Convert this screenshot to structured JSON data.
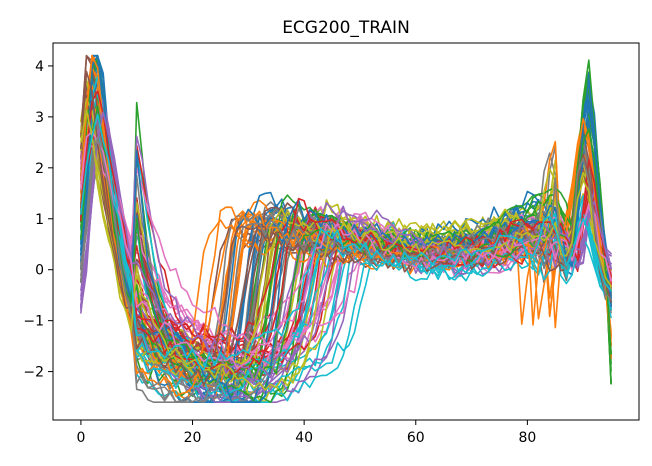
{
  "chart_data": {
    "type": "line",
    "title": "ECG200_TRAIN",
    "xlabel": "",
    "ylabel": "",
    "xlim": [
      -5,
      100
    ],
    "ylim": [
      -2.95,
      4.45
    ],
    "x_ticks": [
      0,
      20,
      40,
      60,
      80
    ],
    "y_ticks": [
      -2,
      -1,
      0,
      1,
      2,
      3,
      4
    ],
    "grid": false,
    "legend": false,
    "n_series": 100,
    "series_length": 96,
    "palette": [
      "#1f77b4",
      "#ff7f0e",
      "#2ca02c",
      "#d62728",
      "#9467bd",
      "#8c564b",
      "#e377c2",
      "#7f7f7f",
      "#bcbd22",
      "#17becf"
    ],
    "series": [
      {
        "values": [
          0.3,
          1.4,
          3.6,
          4.15,
          3.1,
          2.0,
          1.0,
          0.2,
          -0.3,
          -0.6,
          -0.9,
          -1.1,
          -1.2,
          -1.3,
          -1.4,
          -1.5,
          -1.6,
          -1.7,
          -1.8,
          -1.9,
          -2.0,
          -2.1,
          -2.2,
          -2.3,
          -2.4,
          -2.5,
          -2.55,
          -2.5,
          -2.2,
          -1.6,
          -0.8,
          0.1,
          0.7,
          1.0,
          1.05,
          1.0,
          0.95,
          0.9,
          0.85,
          0.8,
          0.75,
          0.7,
          0.7,
          0.65,
          0.65,
          0.6,
          0.6,
          0.6,
          0.55,
          0.55,
          0.55,
          0.5,
          0.5,
          0.5,
          0.5,
          0.5,
          0.45,
          0.45,
          0.45,
          0.45,
          0.45,
          0.45,
          0.5,
          0.5,
          0.5,
          0.5,
          0.5,
          0.55,
          0.55,
          0.6,
          0.6,
          0.6,
          0.65,
          0.7,
          0.7,
          0.75,
          0.8,
          0.85,
          0.9,
          0.95,
          1.0,
          1.1,
          1.1,
          1.0,
          0.9,
          0.8,
          0.6,
          0.3,
          0.1,
          1.0,
          2.5,
          3.2,
          2.4,
          1.2,
          0.3,
          -0.5
        ]
      },
      {
        "values": [
          1.5,
          2.8,
          3.9,
          3.5,
          2.6,
          1.6,
          0.7,
          -0.1,
          -0.6,
          -1.0,
          -1.3,
          -1.5,
          -1.6,
          -1.7,
          -1.8,
          -1.9,
          -1.95,
          -2.0,
          -2.05,
          -2.1,
          -2.15,
          -2.2,
          -2.2,
          -2.1,
          -1.8,
          -1.2,
          -0.4,
          0.4,
          0.9,
          1.1,
          1.0,
          0.9,
          0.85,
          0.8,
          0.75,
          0.7,
          0.7,
          0.65,
          0.65,
          0.6,
          0.6,
          0.55,
          0.55,
          0.5,
          0.5,
          0.5,
          0.45,
          0.45,
          0.4,
          0.4,
          0.4,
          0.4,
          0.35,
          0.35,
          0.35,
          0.35,
          0.35,
          0.3,
          0.3,
          0.3,
          0.3,
          0.3,
          0.3,
          0.3,
          0.3,
          0.3,
          0.3,
          0.3,
          0.3,
          0.3,
          0.3,
          0.3,
          0.3,
          0.35,
          0.35,
          0.35,
          0.4,
          0.4,
          0.45,
          0.5,
          0.5,
          0.55,
          0.6,
          0.7,
          -0.9,
          0.0,
          0.4,
          0.8,
          1.4,
          2.2,
          2.7,
          2.4,
          1.6,
          0.6,
          -0.2,
          -1.5
        ]
      },
      {
        "values": [
          0.8,
          2.4,
          3.3,
          3.7,
          3.0,
          2.0,
          1.1,
          0.3,
          -0.3,
          -0.8,
          -1.2,
          -1.4,
          -1.5,
          -1.6,
          -1.7,
          -1.7,
          -1.75,
          -1.8,
          -1.85,
          -1.9,
          -1.9,
          -1.95,
          -2.0,
          -2.0,
          -2.05,
          -2.1,
          -2.1,
          -2.15,
          -2.2,
          -2.2,
          -2.2,
          -2.1,
          -1.8,
          -1.2,
          -0.4,
          0.4,
          0.9,
          1.1,
          1.0,
          0.9,
          0.85,
          0.8,
          0.8,
          0.75,
          0.7,
          0.7,
          0.65,
          0.65,
          0.6,
          0.6,
          0.6,
          0.55,
          0.55,
          0.5,
          0.5,
          0.5,
          0.5,
          0.5,
          0.5,
          0.45,
          0.45,
          0.45,
          0.45,
          0.45,
          0.45,
          0.45,
          0.5,
          0.5,
          0.5,
          0.5,
          0.55,
          0.55,
          0.6,
          0.6,
          0.65,
          0.7,
          0.75,
          0.8,
          0.85,
          0.9,
          1.0,
          1.1,
          1.2,
          1.3,
          1.4,
          1.3,
          1.1,
          0.9,
          0.6,
          1.8,
          2.9,
          3.3,
          2.5,
          1.3,
          0.1,
          -1.85
        ]
      },
      {
        "values": [
          1.2,
          2.2,
          2.9,
          3.2,
          2.8,
          2.2,
          1.6,
          1.0,
          0.5,
          0.0,
          -0.4,
          -0.7,
          -0.9,
          -1.0,
          -1.1,
          -1.2,
          -1.3,
          -1.35,
          -1.4,
          -1.45,
          -1.5,
          -1.55,
          -1.6,
          -1.6,
          -1.65,
          -1.7,
          -1.7,
          -1.75,
          -1.8,
          -1.8,
          -1.8,
          -1.75,
          -1.7,
          -1.65,
          -1.6,
          -1.5,
          -1.3,
          -0.9,
          -0.3,
          0.4,
          0.9,
          1.15,
          1.1,
          1.0,
          0.9,
          0.85,
          0.8,
          0.75,
          0.7,
          0.7,
          0.65,
          0.6,
          0.6,
          0.55,
          0.55,
          0.5,
          0.5,
          0.45,
          0.45,
          0.45,
          0.4,
          0.4,
          0.4,
          0.4,
          0.4,
          0.4,
          0.4,
          0.4,
          0.4,
          0.4,
          0.45,
          0.45,
          0.45,
          0.5,
          0.5,
          0.55,
          0.55,
          0.6,
          0.65,
          0.7,
          0.75,
          0.8,
          0.85,
          0.9,
          0.95,
          0.9,
          0.8,
          0.6,
          0.4,
          0.2,
          1.1,
          2.0,
          1.6,
          0.8,
          0.2,
          -0.2
        ]
      },
      {
        "values": [
          -0.7,
          0.2,
          1.5,
          2.6,
          3.0,
          2.6,
          1.9,
          1.2,
          0.6,
          0.1,
          -0.3,
          -0.6,
          -0.8,
          -1.0,
          -1.1,
          -1.2,
          -1.3,
          -1.4,
          -1.5,
          -1.6,
          -1.7,
          -1.8,
          -1.9,
          -2.0,
          -2.1,
          -2.2,
          -2.25,
          -2.3,
          -2.35,
          -2.4,
          -2.4,
          -2.4,
          -2.35,
          -2.3,
          -2.2,
          -2.1,
          -2.0,
          -1.9,
          -1.8,
          -1.7,
          -1.6,
          -1.4,
          -1.0,
          -0.4,
          0.3,
          0.8,
          1.0,
          0.95,
          0.9,
          0.85,
          0.8,
          0.75,
          0.7,
          0.65,
          0.6,
          0.55,
          0.5,
          0.45,
          0.4,
          0.35,
          0.3,
          0.25,
          0.2,
          0.2,
          0.15,
          0.15,
          0.15,
          0.15,
          0.15,
          0.15,
          0.15,
          0.2,
          0.2,
          0.25,
          0.25,
          0.3,
          0.35,
          0.4,
          0.45,
          0.5,
          0.55,
          0.6,
          0.65,
          0.7,
          0.75,
          0.8,
          0.7,
          0.5,
          0.3,
          0.1,
          0.4,
          1.0,
          1.3,
          0.8,
          0.3,
          0.0
        ]
      },
      {
        "values": [
          2.2,
          3.6,
          3.3,
          2.5,
          1.7,
          1.0,
          0.4,
          -0.1,
          -0.5,
          -0.8,
          -1.0,
          -1.15,
          -1.25,
          -1.35,
          -1.45,
          -1.55,
          -1.6,
          -1.65,
          -1.7,
          -1.75,
          -1.8,
          -1.85,
          -1.9,
          -1.95,
          -2.0,
          -1.9,
          -1.6,
          -1.0,
          -0.3,
          0.4,
          0.8,
          0.9,
          0.85,
          0.8,
          0.75,
          0.7,
          0.65,
          0.6,
          0.6,
          0.55,
          0.55,
          0.5,
          0.5,
          0.5,
          0.45,
          0.45,
          0.45,
          0.4,
          0.4,
          0.4,
          0.4,
          0.35,
          0.35,
          0.35,
          0.35,
          0.3,
          0.3,
          0.3,
          0.3,
          0.3,
          0.3,
          0.3,
          0.3,
          0.3,
          0.3,
          0.3,
          0.3,
          0.3,
          0.35,
          0.35,
          0.35,
          0.35,
          0.4,
          0.4,
          0.4,
          0.45,
          0.45,
          0.5,
          0.5,
          0.55,
          0.6,
          0.6,
          0.65,
          0.7,
          0.6,
          0.4,
          0.2,
          0.0,
          0.6,
          1.6,
          2.2,
          1.8,
          0.9,
          0.2,
          -0.3,
          -0.5
        ]
      },
      {
        "values": [
          1.8,
          2.6,
          2.8,
          2.5,
          2.2,
          1.8,
          1.4,
          1.0,
          0.6,
          0.3,
          0.0,
          -0.3,
          -0.5,
          -0.7,
          -0.8,
          -0.9,
          -1.0,
          -1.1,
          -1.2,
          -1.3,
          -1.4,
          -1.5,
          -1.55,
          -1.6,
          -1.65,
          -1.7,
          -1.75,
          -1.8,
          -1.8,
          -1.85,
          -1.85,
          -1.85,
          -1.8,
          -1.75,
          -1.7,
          -1.6,
          -1.5,
          -1.4,
          -1.3,
          -1.2,
          -1.1,
          -1.0,
          -0.8,
          -0.5,
          -0.1,
          0.3,
          0.6,
          0.8,
          0.85,
          0.8,
          0.75,
          0.7,
          0.65,
          0.6,
          0.55,
          0.5,
          0.45,
          0.4,
          0.35,
          0.3,
          0.3,
          0.25,
          0.25,
          0.2,
          0.2,
          0.2,
          0.2,
          0.2,
          0.2,
          0.2,
          0.25,
          0.25,
          0.25,
          0.3,
          0.3,
          0.35,
          0.35,
          0.4,
          0.45,
          0.5,
          0.55,
          0.6,
          0.65,
          0.7,
          0.75,
          0.8,
          0.7,
          0.5,
          0.3,
          0.4,
          1.0,
          1.4,
          1.0,
          0.5,
          0.1,
          -0.2
        ]
      },
      {
        "values": [
          0.0,
          1.0,
          2.1,
          2.7,
          2.4,
          1.8,
          1.1,
          0.4,
          -0.2,
          -0.7,
          -1.1,
          -1.4,
          -1.6,
          -1.8,
          -1.9,
          -2.0,
          -2.1,
          -2.2,
          -2.25,
          -2.3,
          -2.35,
          -2.4,
          -2.45,
          -2.5,
          -2.5,
          -2.45,
          -2.4,
          -2.3,
          -2.1,
          -1.8,
          -1.3,
          -0.6,
          0.2,
          0.8,
          1.1,
          1.15,
          1.1,
          1.0,
          0.95,
          0.9,
          0.85,
          0.8,
          0.75,
          0.7,
          0.7,
          0.65,
          0.6,
          0.6,
          0.55,
          0.55,
          0.5,
          0.5,
          0.5,
          0.45,
          0.45,
          0.45,
          0.4,
          0.4,
          0.4,
          0.4,
          0.4,
          0.4,
          0.4,
          0.4,
          0.45,
          0.45,
          0.45,
          0.5,
          0.5,
          0.55,
          0.55,
          0.6,
          0.6,
          0.65,
          0.7,
          0.7,
          0.75,
          0.8,
          0.8,
          0.85,
          0.9,
          0.9,
          0.95,
          1.0,
          0.9,
          0.7,
          0.5,
          0.3,
          0.8,
          1.9,
          2.4,
          1.9,
          1.0,
          0.3,
          -0.2,
          -0.6
        ]
      },
      {
        "values": [
          2.6,
          3.2,
          2.9,
          2.2,
          1.5,
          0.9,
          0.3,
          -0.2,
          -0.6,
          -0.9,
          -1.1,
          -1.25,
          -1.35,
          -1.45,
          -1.5,
          -1.55,
          -1.6,
          -1.65,
          -1.7,
          -1.75,
          -1.8,
          -1.8,
          -1.85,
          -1.9,
          -1.9,
          -1.95,
          -2.0,
          -2.0,
          -2.05,
          -2.1,
          -2.1,
          -2.1,
          -2.05,
          -2.0,
          -1.9,
          -1.8,
          -1.6,
          -1.2,
          -0.6,
          0.1,
          0.7,
          1.05,
          1.1,
          1.0,
          0.95,
          0.9,
          0.85,
          0.8,
          0.8,
          0.75,
          0.75,
          0.7,
          0.7,
          0.7,
          0.65,
          0.65,
          0.65,
          0.6,
          0.6,
          0.6,
          0.6,
          0.6,
          0.6,
          0.6,
          0.6,
          0.6,
          0.65,
          0.65,
          0.65,
          0.7,
          0.7,
          0.7,
          0.75,
          0.75,
          0.8,
          0.8,
          0.85,
          0.9,
          0.9,
          0.95,
          1.0,
          1.0,
          1.05,
          1.1,
          1.0,
          0.8,
          0.6,
          0.4,
          0.7,
          1.5,
          2.0,
          1.6,
          0.9,
          0.4,
          0.1,
          -0.2
        ]
      },
      {
        "values": [
          1.0,
          2.0,
          3.0,
          3.4,
          2.9,
          2.2,
          1.5,
          0.8,
          0.2,
          -0.3,
          -0.7,
          -1.0,
          -1.2,
          -1.35,
          -1.5,
          -1.6,
          -1.7,
          -1.75,
          -1.8,
          -1.85,
          -1.9,
          -1.95,
          -2.0,
          -2.0,
          -2.05,
          -2.1,
          -2.1,
          -2.15,
          -2.2,
          -2.2,
          -2.2,
          -2.15,
          -2.1,
          -2.05,
          -2.0,
          -1.95,
          -1.9,
          -1.85,
          -1.8,
          -1.75,
          -1.7,
          -1.6,
          -1.5,
          -1.4,
          -1.2,
          -0.9,
          -0.5,
          0.0,
          0.4,
          0.6,
          0.65,
          0.6,
          0.55,
          0.5,
          0.45,
          0.4,
          0.35,
          0.3,
          0.25,
          0.2,
          0.2,
          0.15,
          0.15,
          0.1,
          0.1,
          0.1,
          0.1,
          0.1,
          0.1,
          0.1,
          0.15,
          0.15,
          0.15,
          0.2,
          0.2,
          0.25,
          0.25,
          0.3,
          0.35,
          0.4,
          0.45,
          0.5,
          0.55,
          0.6,
          0.55,
          0.4,
          0.2,
          0.0,
          0.3,
          0.8,
          1.1,
          0.7,
          0.3,
          -0.1,
          -0.4,
          -0.6
        ]
      }
    ]
  }
}
